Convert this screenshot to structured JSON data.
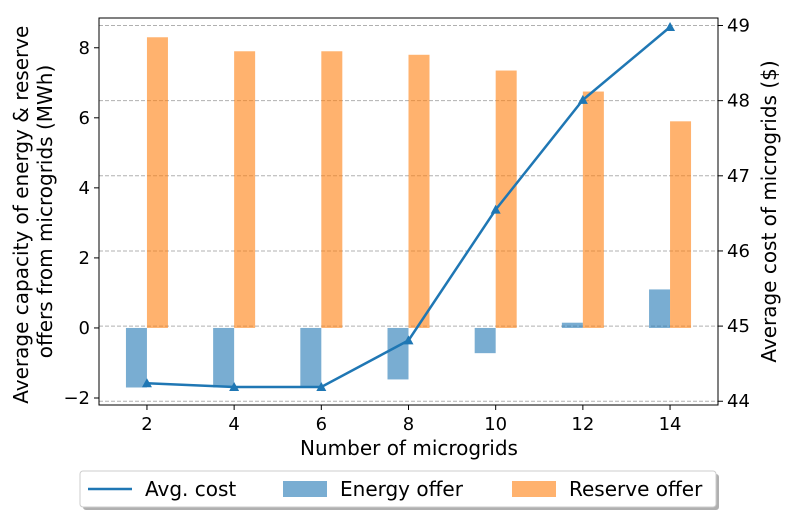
{
  "chart_data": {
    "type": "bar",
    "x": [
      2,
      4,
      6,
      8,
      10,
      12,
      14
    ],
    "xlabel": "Number of microgrids",
    "ylabel_left": "Average capacity of energy & reserve offers from microgrids (MWh)",
    "ylabel_left_lines": [
      "Average capacity of energy & reserve",
      "offers from microgrids (MWh)"
    ],
    "ylabel_right": "Average cost of microgrids ($)",
    "xticks": [
      "2",
      "4",
      "6",
      "8",
      "10",
      "12",
      "14"
    ],
    "yticks_left": [
      "−2",
      "0",
      "2",
      "4",
      "6",
      "8"
    ],
    "yticks_right": [
      "44",
      "45",
      "46",
      "47",
      "48",
      "49"
    ],
    "ylim_left": [
      -2.2,
      8.85
    ],
    "ylim_right": [
      43.95,
      49.1
    ],
    "grid": "horizontal dashed (right axis)",
    "legend_position": "bottom-center",
    "series": [
      {
        "name": "Avg. cost",
        "type": "line",
        "axis": "right",
        "color": "#1f77b4",
        "marker": "triangle",
        "values": [
          44.24,
          44.19,
          44.19,
          44.81,
          46.55,
          48.01,
          48.98
        ]
      },
      {
        "name": "Energy offer",
        "type": "bar",
        "axis": "left",
        "color": "#1f77b4",
        "values": [
          -1.7,
          -1.7,
          -1.7,
          -1.47,
          -0.72,
          0.15,
          1.1
        ]
      },
      {
        "name": "Reserve offer",
        "type": "bar",
        "axis": "left",
        "color": "#ff7f0e",
        "values": [
          8.3,
          7.9,
          7.9,
          7.8,
          7.35,
          6.75,
          5.9
        ]
      }
    ]
  }
}
